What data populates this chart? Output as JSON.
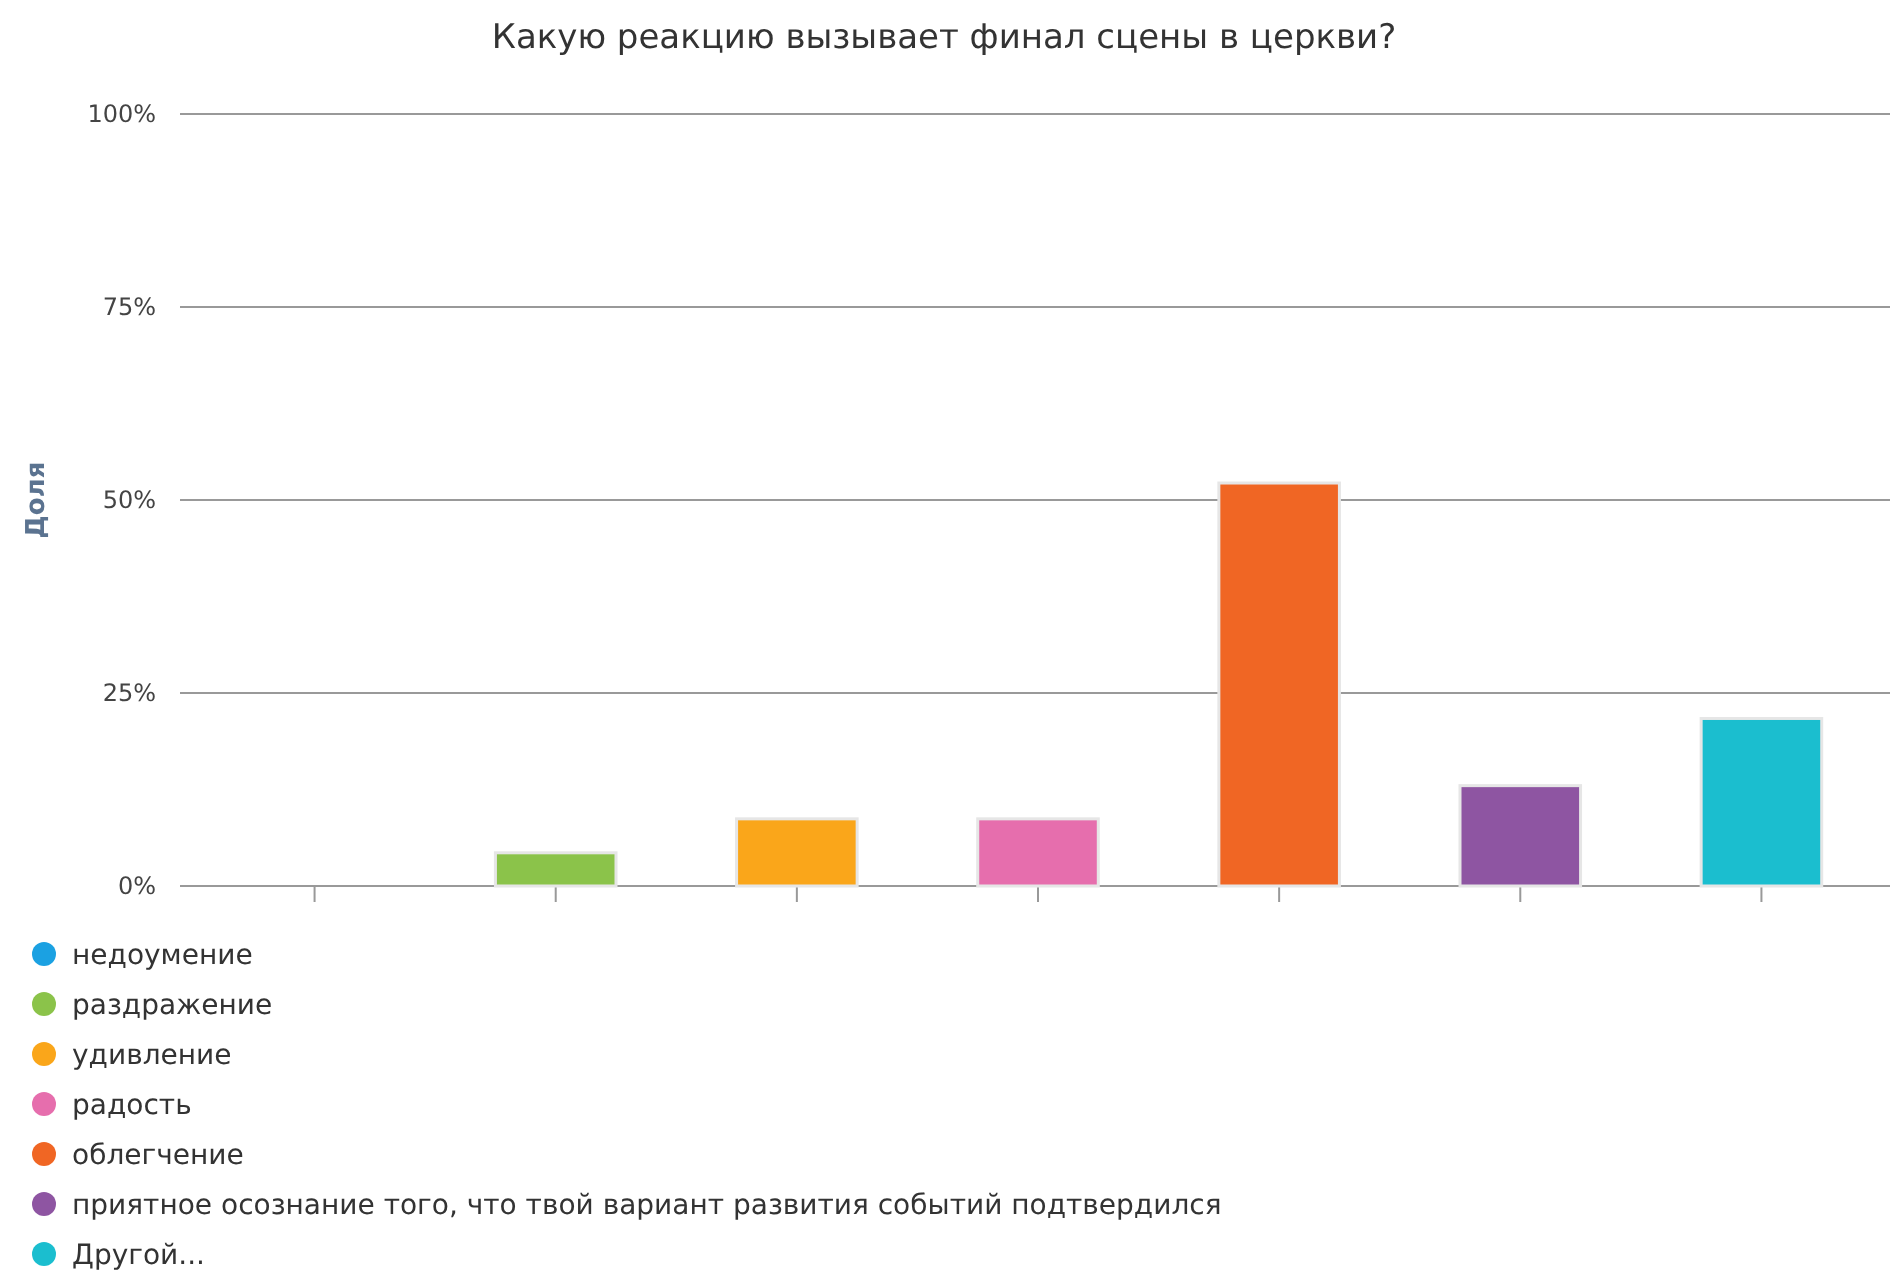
{
  "chart_data": {
    "type": "bar",
    "title": "Какую реакцию вызывает финал сцены в церкви?",
    "ylabel": "Доля",
    "categories": [
      null,
      null,
      null,
      null,
      null,
      null,
      null
    ],
    "series": [
      {
        "name": "недоумение",
        "color": "#1ba1e2",
        "values": [
          0,
          null,
          null,
          null,
          null,
          null,
          null
        ]
      },
      {
        "name": "раздражение",
        "color": "#8bc34a",
        "values": [
          null,
          4.3,
          null,
          null,
          null,
          null,
          null
        ]
      },
      {
        "name": "удивление",
        "color": "#faa61a",
        "values": [
          null,
          null,
          8.7,
          null,
          null,
          null,
          null
        ]
      },
      {
        "name": "радость",
        "color": "#e66ead",
        "values": [
          null,
          null,
          null,
          8.7,
          null,
          null,
          null
        ]
      },
      {
        "name": "облегчение",
        "color": "#f06624",
        "values": [
          null,
          null,
          null,
          null,
          52.2,
          null,
          null
        ]
      },
      {
        "name": "приятное осознание того, что твой вариант развития событий подтвердился",
        "color": "#8e55a2",
        "values": [
          null,
          null,
          null,
          null,
          null,
          13,
          null
        ]
      },
      {
        "name": "Другой...",
        "color": "#1bbecf",
        "values": [
          null,
          null,
          null,
          null,
          null,
          null,
          21.7
        ]
      }
    ],
    "ylim": [
      0,
      100
    ],
    "yticks": [
      {
        "value": 0,
        "label": "0%"
      },
      {
        "value": 25,
        "label": "25%"
      },
      {
        "value": 50,
        "label": "50%"
      },
      {
        "value": 75,
        "label": "75%"
      },
      {
        "value": 100,
        "label": "100%"
      }
    ],
    "grid": "y",
    "legend": "bottom",
    "tick_labels": "y"
  }
}
